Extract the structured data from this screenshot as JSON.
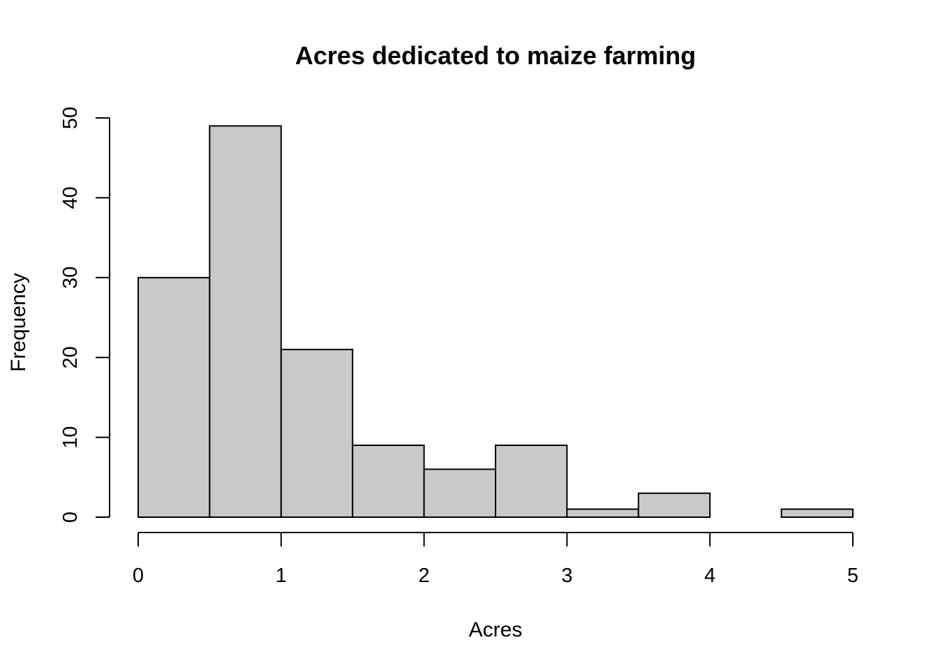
{
  "chart_data": {
    "type": "bar",
    "subtype": "histogram",
    "title": "Acres dedicated to maize farming",
    "xlabel": "Acres",
    "ylabel": "Frequency",
    "bin_edges": [
      0,
      0.5,
      1,
      1.5,
      2,
      2.5,
      3,
      3.5,
      4,
      4.5,
      5
    ],
    "values": [
      30,
      49,
      21,
      9,
      6,
      9,
      1,
      3,
      0,
      1
    ],
    "xlim": [
      0,
      5
    ],
    "ylim": [
      0,
      50
    ],
    "x_ticks": [
      0,
      1,
      2,
      3,
      4,
      5
    ],
    "x_tick_labels": [
      "0",
      "1",
      "2",
      "3",
      "4",
      "5"
    ],
    "y_ticks": [
      0,
      10,
      20,
      30,
      40,
      50
    ],
    "y_tick_labels": [
      "0",
      "10",
      "20",
      "30",
      "40",
      "50"
    ],
    "grid": false,
    "colors": {
      "bar_fill": "#c9c9c9",
      "bar_stroke": "#000000",
      "axis": "#000000",
      "background": "#ffffff"
    }
  }
}
